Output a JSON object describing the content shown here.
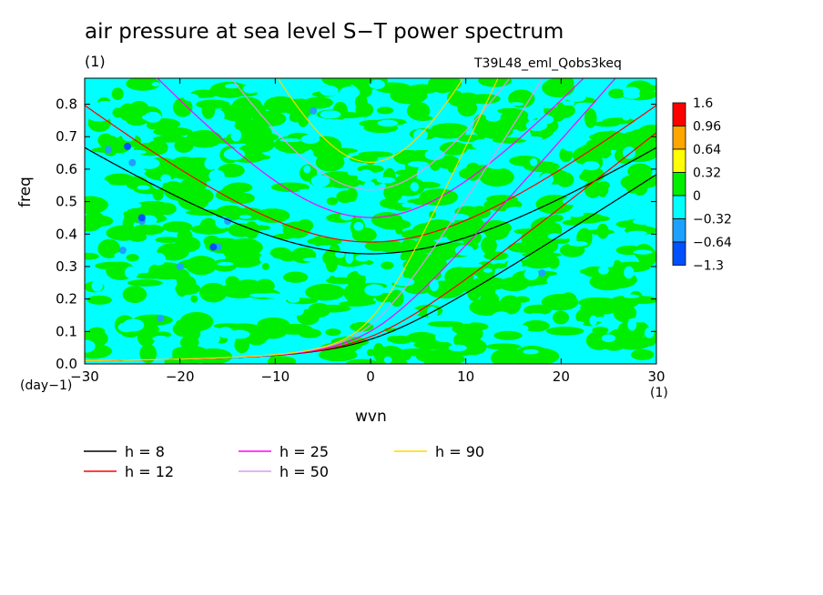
{
  "chart_data": {
    "type": "heatmap",
    "title": "air pressure at sea level S−T power spectrum",
    "title_unit": "(1)",
    "run_label": "T39L48_eml_Qobs3keq",
    "xlabel": "wvn",
    "ylabel": "freq",
    "x_unit": "(1)",
    "y_unit": "(day−1)",
    "xlim": [
      -30,
      30
    ],
    "ylim": [
      0,
      0.88
    ],
    "x_ticks": [
      -30,
      -20,
      -10,
      0,
      10,
      20,
      30
    ],
    "x_tick_labels": [
      "−30",
      "−20",
      "−10",
      "0",
      "10",
      "20",
      "30"
    ],
    "y_ticks": [
      0,
      0.1,
      0.2,
      0.3,
      0.4,
      0.5,
      0.6,
      0.7,
      0.8
    ],
    "y_tick_labels": [
      "0.0",
      "0.1",
      "0.2",
      "0.3",
      "0.4",
      "0.5",
      "0.6",
      "0.7",
      "0.8"
    ],
    "colorbar": {
      "levels": [
        "1.6",
        "0.96",
        "0.64",
        "0.32",
        "0",
        "−0.32",
        "−0.64",
        "−1.3"
      ],
      "colors": [
        "#ff0000",
        "#ffa500",
        "#ffff00",
        "#00ee00",
        "#00ffff",
        "#1ea0ff",
        "#0050ff"
      ]
    },
    "background_color": "#00ffff",
    "series": [
      {
        "name": "h =  8",
        "color": "#000000",
        "equivalent_depth": 8
      },
      {
        "name": "h = 12",
        "color": "#ff0000",
        "equivalent_depth": 12
      },
      {
        "name": "h = 25",
        "color": "#ff00ff",
        "equivalent_depth": 25
      },
      {
        "name": "h = 50",
        "color": "#dd99ee",
        "equivalent_depth": 50
      },
      {
        "name": "h = 90",
        "color": "#ffd700",
        "equivalent_depth": 90
      }
    ],
    "wave_families": [
      "kelvin",
      "inertia-gravity-n1"
    ],
    "patches": [
      {
        "x": -14,
        "y": 0.23,
        "level": "0.32"
      },
      {
        "x": -4,
        "y": 0.26,
        "level": "0.32"
      },
      {
        "x": -2,
        "y": 0.57,
        "level": "0.32"
      },
      {
        "x": 2.5,
        "y": 0.44,
        "level": "0.32"
      },
      {
        "x": 3.5,
        "y": 0.33,
        "level": "0.32"
      },
      {
        "x": 5,
        "y": 0.32,
        "level": "0.32"
      },
      {
        "x": 3,
        "y": 0.41,
        "level": "0.32"
      },
      {
        "x": 6.5,
        "y": 0.46,
        "level": "0.32"
      },
      {
        "x": 4.5,
        "y": 0.58,
        "level": "0.32"
      },
      {
        "x": 8.5,
        "y": 0.6,
        "level": "0.32"
      },
      {
        "x": -18.5,
        "y": 0.2,
        "level": "0.32"
      },
      {
        "x": 0,
        "y": 0.035,
        "level": "0.32"
      },
      {
        "x": -11,
        "y": 0.3,
        "level": "0.32"
      },
      {
        "x": -27.5,
        "y": 0.66,
        "level": "−0.32"
      },
      {
        "x": -25,
        "y": 0.62,
        "level": "−0.32"
      },
      {
        "x": -24,
        "y": 0.44,
        "level": "−0.32"
      },
      {
        "x": -16,
        "y": 0.36,
        "level": "−0.32"
      },
      {
        "x": -15,
        "y": 0.44,
        "level": "−0.32"
      },
      {
        "x": -26,
        "y": 0.35,
        "level": "−0.32"
      },
      {
        "x": -20,
        "y": 0.3,
        "level": "−0.32"
      },
      {
        "x": -6,
        "y": 0.78,
        "level": "−0.32"
      },
      {
        "x": -22,
        "y": 0.14,
        "level": "−0.32"
      },
      {
        "x": 18,
        "y": 0.28,
        "level": "−0.32"
      },
      {
        "x": -25.5,
        "y": 0.67,
        "level": "−0.64"
      },
      {
        "x": -16.5,
        "y": 0.36,
        "level": "−0.64"
      },
      {
        "x": -24,
        "y": 0.45,
        "level": "−0.64"
      }
    ]
  },
  "legend": {
    "items": [
      {
        "label": "h =  8",
        "color": "#000000"
      },
      {
        "label": "h = 25",
        "color": "#ff00ff"
      },
      {
        "label": "h = 90",
        "color": "#ffd700"
      },
      {
        "label": "h = 12",
        "color": "#ff0000"
      },
      {
        "label": "h = 50",
        "color": "#dd99ee"
      }
    ]
  }
}
